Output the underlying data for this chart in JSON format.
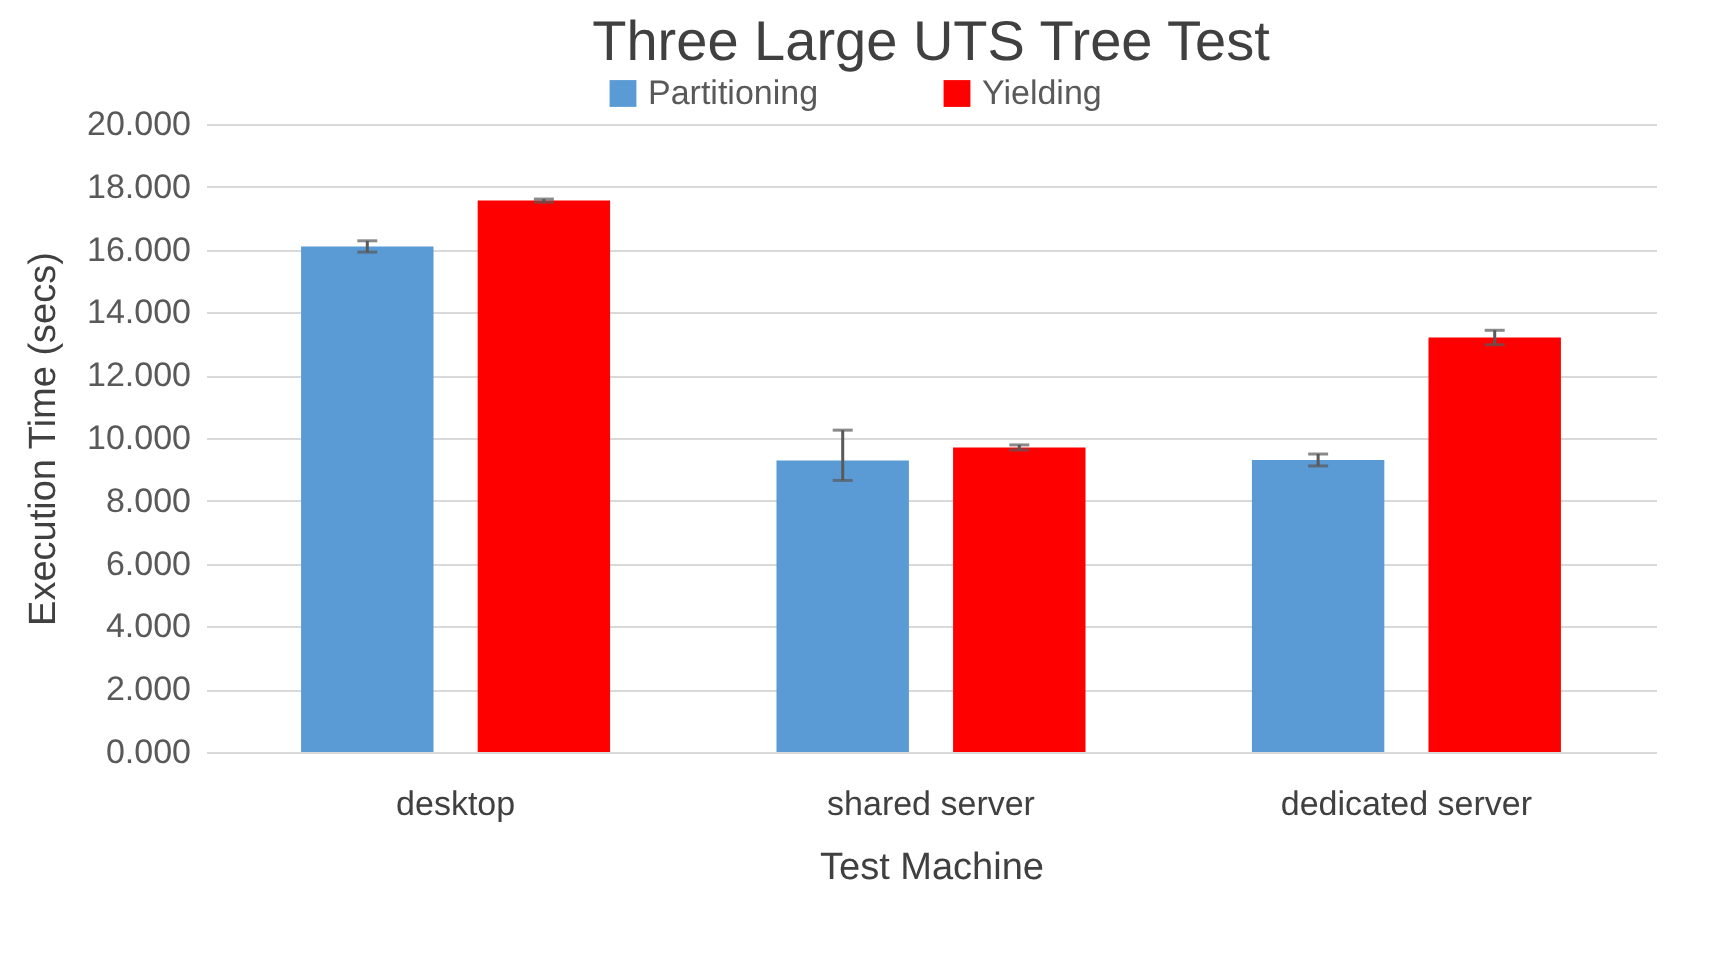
{
  "chart_data": {
    "type": "bar",
    "title": "Three Large UTS Tree Test",
    "xlabel": "Test Machine",
    "ylabel": "Execution Time (secs)",
    "categories": [
      "desktop",
      "shared server",
      "dedicated server"
    ],
    "series": [
      {
        "name": "Partitioning",
        "color": "#5b9bd5",
        "values": [
          16.1,
          9.28,
          9.3
        ],
        "errors": [
          0.18,
          [
            8.65,
            10.25
          ],
          0.19
        ]
      },
      {
        "name": "Yielding",
        "color": "#ff0000",
        "values": [
          17.56,
          9.7,
          13.2
        ],
        "errors": [
          0.05,
          0.08,
          0.23
        ]
      }
    ],
    "ylim": [
      0,
      20
    ],
    "yticks": [
      {
        "value": 0,
        "label": "0.000"
      },
      {
        "value": 2,
        "label": "2.000"
      },
      {
        "value": 4,
        "label": "4.000"
      },
      {
        "value": 6,
        "label": "6.000"
      },
      {
        "value": 8,
        "label": "8.000"
      },
      {
        "value": 10,
        "label": "10.000"
      },
      {
        "value": 12,
        "label": "12.000"
      },
      {
        "value": 14,
        "label": "14.000"
      },
      {
        "value": 16,
        "label": "16.000"
      },
      {
        "value": 18,
        "label": "18.000"
      },
      {
        "value": 20,
        "label": "20.000"
      }
    ],
    "grid": "y",
    "legend": "top"
  }
}
